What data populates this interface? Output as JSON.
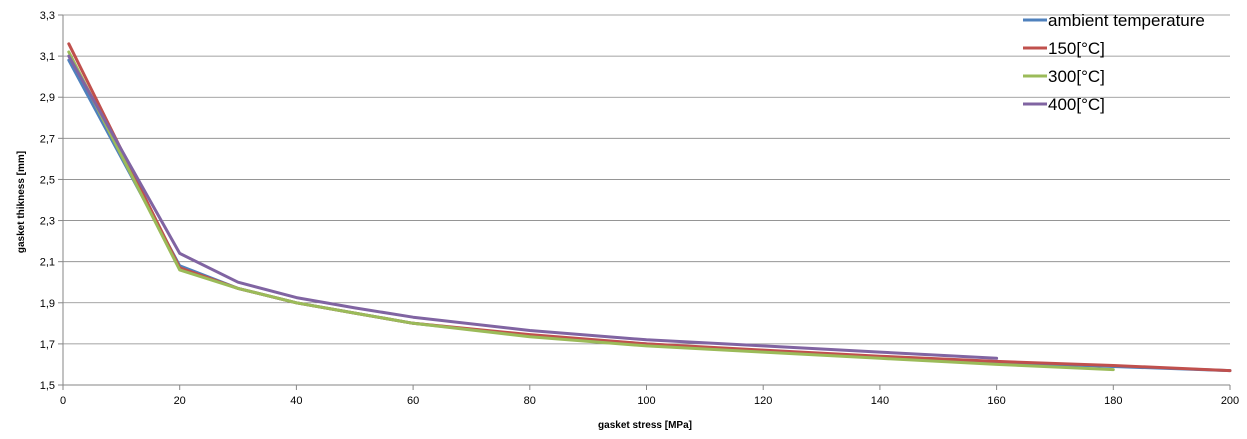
{
  "chart_data": {
    "type": "line",
    "title": "",
    "xlabel": "gasket stress [MPa]",
    "ylabel": "gasket thikness [mm]",
    "xlim": [
      0,
      200
    ],
    "ylim": [
      1.5,
      3.3
    ],
    "xticks": [
      "0",
      "20",
      "40",
      "60",
      "80",
      "100",
      "120",
      "140",
      "160",
      "180",
      "200"
    ],
    "yticks": [
      "1,5",
      "1,7",
      "1,9",
      "2,1",
      "2,3",
      "2,5",
      "2,7",
      "2,9",
      "3,1",
      "3,3"
    ],
    "grid": true,
    "legend_position": "top-right",
    "series": [
      {
        "name": "ambient temperature",
        "color": "#4f81bd",
        "x": [
          1,
          20,
          30,
          40,
          50,
          60,
          80,
          100,
          120,
          140,
          160,
          180,
          200
        ],
        "y": [
          3.08,
          2.08,
          1.97,
          1.9,
          1.85,
          1.8,
          1.74,
          1.7,
          1.665,
          1.635,
          1.61,
          1.59,
          1.57
        ]
      },
      {
        "name": "150[°C]",
        "color": "#c0504d",
        "x": [
          1,
          20,
          30,
          40,
          50,
          60,
          80,
          100,
          120,
          140,
          160,
          180,
          200
        ],
        "y": [
          3.16,
          2.07,
          1.97,
          1.9,
          1.85,
          1.8,
          1.745,
          1.7,
          1.67,
          1.64,
          1.615,
          1.595,
          1.57
        ]
      },
      {
        "name": "300[°C]",
        "color": "#9bbb59",
        "x": [
          1,
          20,
          30,
          40,
          50,
          60,
          80,
          100,
          120,
          140,
          160,
          180
        ],
        "y": [
          3.12,
          2.06,
          1.97,
          1.9,
          1.85,
          1.8,
          1.735,
          1.69,
          1.66,
          1.63,
          1.6,
          1.575
        ]
      },
      {
        "name": "400[°C]",
        "color": "#8064a2",
        "x": [
          1,
          20,
          30,
          40,
          50,
          60,
          80,
          100,
          120,
          140,
          160
        ],
        "y": [
          3.1,
          2.14,
          2.0,
          1.925,
          1.875,
          1.83,
          1.765,
          1.72,
          1.69,
          1.66,
          1.63
        ]
      }
    ]
  }
}
